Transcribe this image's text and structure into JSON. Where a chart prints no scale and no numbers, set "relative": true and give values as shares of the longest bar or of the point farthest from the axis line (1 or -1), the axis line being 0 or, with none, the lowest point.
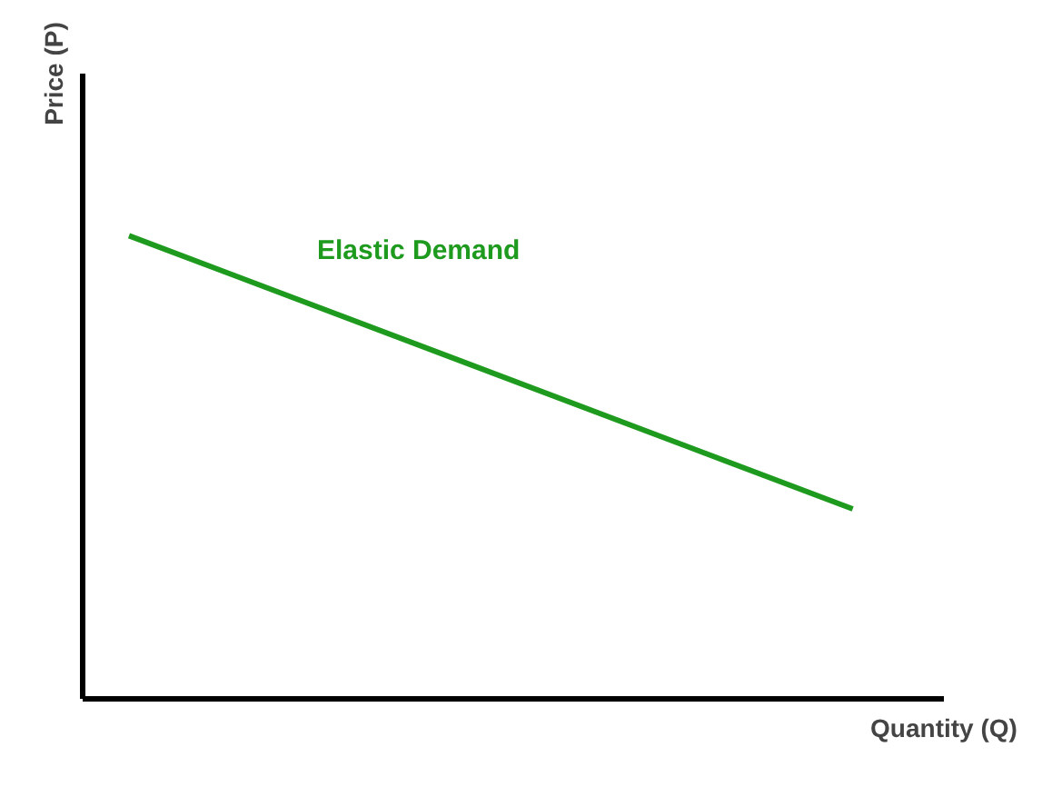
{
  "chart_data": {
    "type": "line",
    "xlabel": "Quantity (Q)",
    "ylabel": "Price (P)",
    "relative": true,
    "categories": [
      null,
      null
    ],
    "series": [
      {
        "name": "Elastic Demand",
        "color": "#1e9a1e",
        "values": [
          1,
          0.41
        ]
      }
    ],
    "grid": false,
    "legend": false,
    "marker": "none",
    "line_style": "solid"
  }
}
